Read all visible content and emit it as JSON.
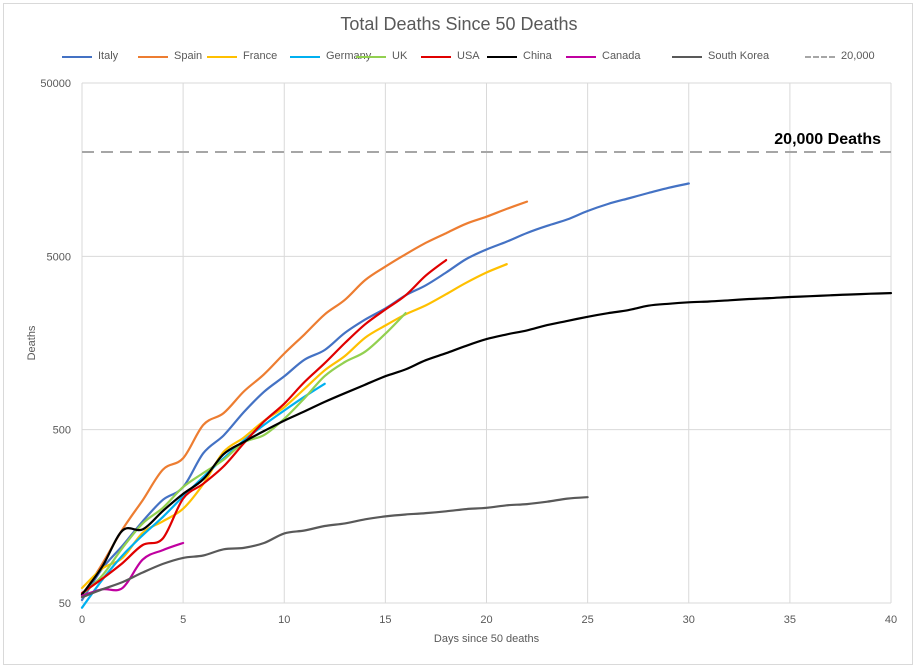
{
  "chart_data": {
    "type": "line",
    "title": "Total Deaths Since 50 Deaths",
    "xlabel": "Days since 50 deaths",
    "ylabel": "Deaths",
    "xlim": [
      0,
      40
    ],
    "ylim": [
      50,
      50000
    ],
    "yscale": "log",
    "x_ticks": [
      "0",
      "5",
      "10",
      "15",
      "20",
      "25",
      "30",
      "35",
      "40"
    ],
    "y_ticks": [
      "50",
      "500",
      "5000",
      "50000"
    ],
    "grid": true,
    "legend_position": "top",
    "annotation": "20,000 Deaths",
    "series": [
      {
        "name": "Italy",
        "color": "#4472c4",
        "x": [
          0,
          1,
          2,
          3,
          4,
          5,
          6,
          7,
          8,
          9,
          10,
          11,
          12,
          13,
          14,
          15,
          16,
          17,
          18,
          19,
          20,
          21,
          22,
          23,
          24,
          25,
          26,
          27,
          28,
          29,
          30
        ],
        "y": [
          52,
          79,
          107,
          148,
          197,
          233,
          366,
          463,
          631,
          827,
          1016,
          1266,
          1441,
          1809,
          2158,
          2503,
          2978,
          3405,
          4032,
          4825,
          5476,
          6077,
          6820,
          7503,
          8165,
          9134,
          10023,
          10779,
          11591,
          12428,
          13155
        ]
      },
      {
        "name": "Spain",
        "color": "#ed7d31",
        "x": [
          0,
          1,
          2,
          3,
          4,
          5,
          6,
          7,
          8,
          9,
          10,
          11,
          12,
          13,
          14,
          15,
          16,
          17,
          18,
          19,
          20,
          21,
          22
        ],
        "y": [
          55,
          84,
          133,
          196,
          294,
          342,
          533,
          623,
          830,
          1043,
          1375,
          1772,
          2311,
          2808,
          3647,
          4365,
          5138,
          5982,
          6803,
          7716,
          8464,
          9387,
          10348
        ]
      },
      {
        "name": "France",
        "color": "#ffc000",
        "x": [
          0,
          1,
          2,
          3,
          4,
          5,
          6,
          7,
          8,
          9,
          10,
          11,
          12,
          13,
          14,
          15,
          16,
          17,
          18,
          19,
          20,
          21
        ],
        "y": [
          61,
          79,
          91,
          127,
          148,
          175,
          243,
          372,
          450,
          562,
          674,
          860,
          1100,
          1331,
          1696,
          1995,
          2314,
          2606,
          3024,
          3523,
          4032,
          4503
        ]
      },
      {
        "name": "Germany",
        "color": "#00b0f0",
        "x": [
          0,
          1,
          2,
          3,
          4,
          5,
          6,
          7,
          8,
          9,
          10,
          11,
          12
        ],
        "y": [
          47,
          68,
          94,
          123,
          157,
          206,
          267,
          342,
          433,
          533,
          645,
          775,
          920
        ]
      },
      {
        "name": "UK",
        "color": "#92d050",
        "x": [
          0,
          1,
          2,
          3,
          4,
          5,
          6,
          7,
          8,
          9,
          10,
          11,
          12,
          13,
          14,
          15,
          16
        ],
        "y": [
          56,
          72,
          104,
          144,
          177,
          233,
          281,
          335,
          422,
          465,
          578,
          759,
          1019,
          1228,
          1408,
          1789,
          2352
        ]
      },
      {
        "name": "USA",
        "color": "#e00000",
        "x": [
          0,
          1,
          2,
          3,
          4,
          5,
          6,
          7,
          8,
          9,
          10,
          11,
          12,
          13,
          14,
          15,
          16,
          17,
          18
        ],
        "y": [
          57,
          69,
          85,
          108,
          118,
          200,
          244,
          307,
          417,
          557,
          706,
          942,
          1209,
          1581,
          2026,
          2467,
          2978,
          3873,
          4757
        ]
      },
      {
        "name": "China",
        "color": "#000000",
        "x": [
          0,
          1,
          2,
          3,
          4,
          5,
          6,
          7,
          8,
          9,
          10,
          11,
          12,
          13,
          14,
          15,
          16,
          17,
          18,
          19,
          20,
          21,
          22,
          23,
          24,
          25,
          26,
          27,
          28,
          29,
          30,
          31,
          32,
          33,
          34,
          35,
          36,
          37,
          38,
          39,
          40
        ],
        "y": [
          56,
          81,
          131,
          133,
          170,
          213,
          259,
          361,
          425,
          491,
          564,
          637,
          723,
          812,
          909,
          1017,
          1114,
          1259,
          1381,
          1524,
          1666,
          1772,
          1870,
          2006,
          2121,
          2239,
          2348,
          2445,
          2595,
          2663,
          2715,
          2744,
          2788,
          2835,
          2870,
          2912,
          2943,
          2981,
          3012,
          3042,
          3070
        ]
      },
      {
        "name": "Canada",
        "color": "#c000a0",
        "x": [
          0,
          1,
          2,
          3,
          4,
          5
        ],
        "y": [
          55,
          60,
          61,
          89,
          101,
          111
        ]
      },
      {
        "name": "South Korea",
        "color": "#595959",
        "x": [
          0,
          1,
          2,
          3,
          4,
          5,
          6,
          7,
          8,
          9,
          10,
          11,
          12,
          13,
          14,
          15,
          16,
          17,
          18,
          19,
          20,
          21,
          22,
          23,
          24,
          25
        ],
        "y": [
          54,
          60,
          66,
          75,
          84,
          91,
          94,
          102,
          104,
          111,
          126,
          131,
          139,
          144,
          152,
          158,
          162,
          165,
          169,
          174,
          177,
          183,
          186,
          192,
          200,
          204
        ]
      },
      {
        "name": "20,000",
        "color": "#a6a6a6",
        "dashed": true,
        "x": [
          0,
          40
        ],
        "y": [
          20000,
          20000
        ]
      }
    ]
  }
}
